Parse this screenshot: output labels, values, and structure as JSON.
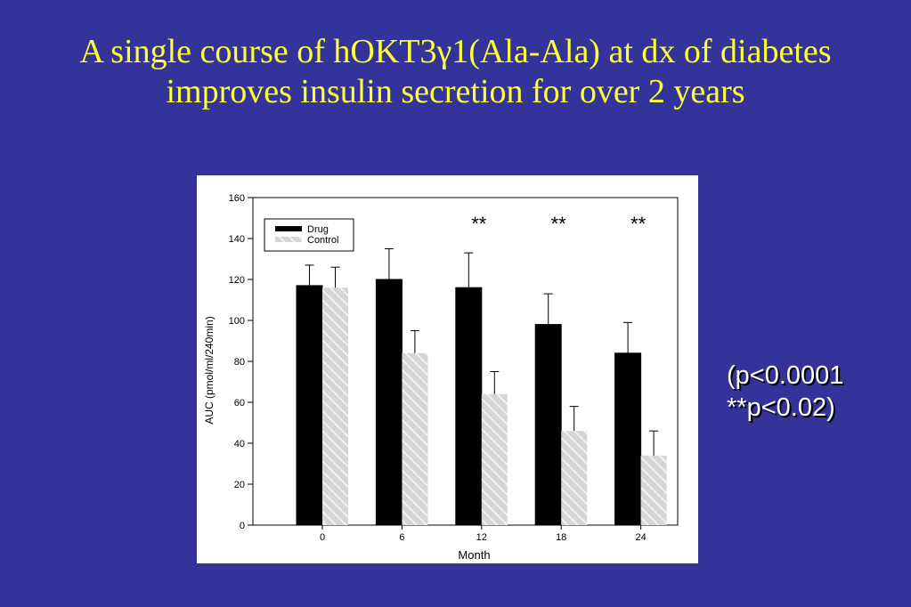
{
  "slide": {
    "title": "A single course of hOKT3γ1(Ala-Ala) at dx of diabetes improves insulin secretion for over 2 years",
    "pvalue_lines": [
      "(p<0.0001",
      "**p<0.02)"
    ]
  },
  "colors": {
    "background": "#333399",
    "title": "#ffff33",
    "drug_bar": "#000000",
    "control_bar": "#cccccc",
    "pvalue_text": "#ffffff"
  },
  "chart_data": {
    "type": "bar",
    "categories": [
      "0",
      "6",
      "12",
      "18",
      "24"
    ],
    "xlabel": "Month",
    "ylabel": "AUC (pmol/ml/240min)",
    "ylim": [
      0,
      160
    ],
    "yticks": [
      "0",
      "20",
      "40",
      "60",
      "80",
      "100",
      "120",
      "140",
      "160"
    ],
    "series": [
      {
        "name": "Drug",
        "values": [
          117,
          120,
          116,
          98,
          84
        ],
        "error": [
          10,
          15,
          17,
          15,
          15
        ],
        "fill": "solid-black"
      },
      {
        "name": "Control",
        "values": [
          116,
          84,
          64,
          46,
          34
        ],
        "error": [
          10,
          11,
          11,
          12,
          12
        ],
        "fill": "hatched-gray"
      }
    ],
    "annotations": [
      {
        "category": "12",
        "text": "**"
      },
      {
        "category": "18",
        "text": "**"
      },
      {
        "category": "24",
        "text": "**"
      }
    ],
    "legend": "top-left",
    "grid": false
  }
}
